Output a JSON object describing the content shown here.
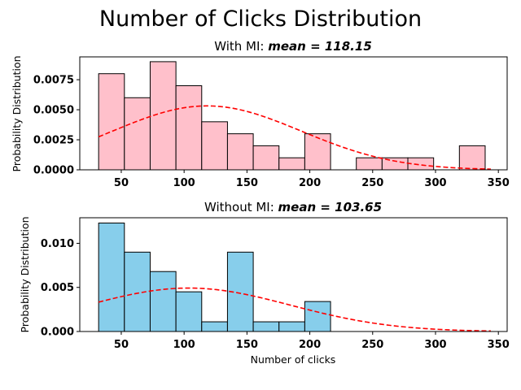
{
  "chart_data": {
    "figure_title": "Number of Clicks Distribution",
    "panels": [
      {
        "type": "bar",
        "title_prefix": "With MI: ",
        "title_mean": "mean = 118.15",
        "ylabel": "Probability Distribution",
        "xlabel": "",
        "bar_color": "#ffc0cb",
        "curve_color": "#ff0000",
        "bin_edges": [
          32,
          52.5,
          73,
          93.5,
          114,
          134.5,
          155,
          175.5,
          196,
          216.5,
          237,
          257.5,
          278,
          298.5,
          319,
          339.5
        ],
        "values": [
          0.008,
          0.006,
          0.009,
          0.007,
          0.004,
          0.003,
          0.002,
          0.001,
          0.003,
          0.0,
          0.001,
          0.001,
          0.001,
          0.0,
          0.002
        ],
        "curve_mean": 118.15,
        "curve_std": 75,
        "curve_x_range": [
          32,
          344
        ],
        "xlim": [
          17,
          357
        ],
        "ylim": [
          0,
          0.0094
        ],
        "xticks": [
          "50",
          "100",
          "150",
          "200",
          "250",
          "300",
          "350"
        ],
        "xtick_values": [
          50,
          100,
          150,
          200,
          250,
          300,
          350
        ],
        "yticks": [
          "0.0000",
          "0.0025",
          "0.0050",
          "0.0075"
        ],
        "ytick_values": [
          0,
          0.0025,
          0.005,
          0.0075
        ]
      },
      {
        "type": "bar",
        "title_prefix": "Without MI: ",
        "title_mean": "mean = 103.65",
        "ylabel": "Probability Distribution",
        "xlabel": "Number of clicks",
        "bar_color": "#87ceeb",
        "curve_color": "#ff0000",
        "bin_edges": [
          32,
          52.5,
          73,
          93.5,
          114,
          134.5,
          155,
          175.5,
          196,
          216.5
        ],
        "values": [
          0.0123,
          0.009,
          0.0068,
          0.0045,
          0.0011,
          0.009,
          0.0011,
          0.0011,
          0.0034
        ],
        "curve_mean": 103.65,
        "curve_std": 81,
        "curve_x_range": [
          32,
          344
        ],
        "xlim": [
          17,
          357
        ],
        "ylim": [
          0,
          0.0129
        ],
        "xticks": [
          "50",
          "100",
          "150",
          "200",
          "250",
          "300",
          "350"
        ],
        "xtick_values": [
          50,
          100,
          150,
          200,
          250,
          300,
          350
        ],
        "yticks": [
          "0.000",
          "0.005",
          "0.010"
        ],
        "ytick_values": [
          0,
          0.005,
          0.01
        ]
      }
    ]
  }
}
